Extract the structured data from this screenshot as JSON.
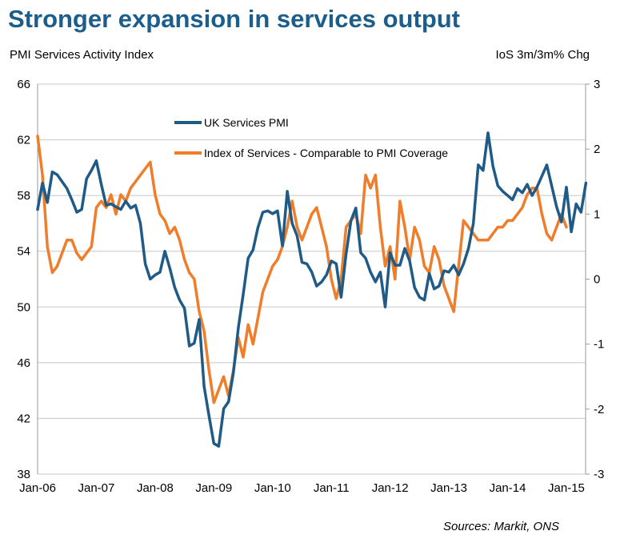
{
  "title": "Stronger expansion in services output",
  "source": "Sources: Markit, ONS",
  "colors": {
    "title": "#1b5e8c",
    "pmi": "#1f5b86",
    "ios": "#f07d2a",
    "grid": "#c8c8c8"
  },
  "chart_data": {
    "type": "line",
    "grid": "horizontal",
    "legend_position": "top-center",
    "ylabel_left": "PMI Services Activity Index",
    "ylabel_right": "IoS 3m/3m% Chg",
    "ylim_left": [
      38,
      66
    ],
    "ylim_right": [
      -3,
      3
    ],
    "left_ticks": [
      "38",
      "42",
      "46",
      "50",
      "54",
      "58",
      "62",
      "66"
    ],
    "right_ticks": [
      "-3",
      "-2",
      "-1",
      "0",
      "1",
      "2",
      "3"
    ],
    "x_ticks": [
      "Jan-06",
      "Jan-07",
      "Jan-08",
      "Jan-09",
      "Jan-10",
      "Jan-11",
      "Jan-12",
      "Jan-13",
      "Jan-14",
      "Jan-15"
    ],
    "x_start": "Jan-06",
    "series": [
      {
        "name": "UK Services PMI",
        "axis": "left",
        "values": [
          57.0,
          58.9,
          57.5,
          59.7,
          59.5,
          59.0,
          58.5,
          57.7,
          56.8,
          57.0,
          59.2,
          59.8,
          60.5,
          58.8,
          57.3,
          57.4,
          57.2,
          57.0,
          57.6,
          57.1,
          57.3,
          56.0,
          53.1,
          52.0,
          52.3,
          52.5,
          54.0,
          52.8,
          51.4,
          50.5,
          49.9,
          47.2,
          47.4,
          49.1,
          44.3,
          42.2,
          40.2,
          40.0,
          42.7,
          43.2,
          45.3,
          48.5,
          50.9,
          53.5,
          54.1,
          55.7,
          56.8,
          56.9,
          56.7,
          56.9,
          54.4,
          58.3,
          56.0,
          55.1,
          53.2,
          53.1,
          52.5,
          51.5,
          51.8,
          52.3,
          53.3,
          53.1,
          50.7,
          53.8,
          56.2,
          57.1,
          53.9,
          53.5,
          52.5,
          51.8,
          52.5,
          50.0,
          53.9,
          53.0,
          53.0,
          54.2,
          53.3,
          51.4,
          50.7,
          50.5,
          52.4,
          51.3,
          51.5,
          52.6,
          52.5,
          53.0,
          52.3,
          53.1,
          54.2,
          56.0,
          60.2,
          59.8,
          62.5,
          60.1,
          58.7,
          58.3,
          58.0,
          57.7,
          58.5,
          58.2,
          58.8,
          58.0,
          58.6,
          59.4,
          60.2,
          58.7,
          57.2,
          56.1,
          58.6,
          55.4,
          57.4,
          56.8,
          58.9
        ]
      },
      {
        "name": "Index of Services - Comparable to PMI Coverage",
        "axis": "right",
        "values": [
          2.2,
          1.6,
          0.5,
          0.1,
          0.2,
          0.4,
          0.6,
          0.6,
          0.4,
          0.3,
          0.4,
          0.5,
          1.1,
          1.2,
          1.1,
          1.3,
          1.0,
          1.3,
          1.2,
          1.4,
          1.5,
          1.6,
          1.7,
          1.8,
          1.3,
          1.0,
          0.9,
          0.7,
          0.8,
          0.6,
          0.3,
          0.1,
          0.0,
          -0.5,
          -0.8,
          -1.4,
          -1.9,
          -1.7,
          -1.5,
          -1.8,
          -1.4,
          -0.9,
          -1.2,
          -0.7,
          -1.0,
          -0.6,
          -0.2,
          0.0,
          0.2,
          0.3,
          0.5,
          0.8,
          1.2,
          0.8,
          0.6,
          0.8,
          1.0,
          1.1,
          0.8,
          0.5,
          0.0,
          -0.3,
          0.0,
          0.8,
          0.9,
          1.0,
          0.7,
          1.6,
          1.4,
          1.6,
          0.8,
          0.2,
          0.5,
          0.0,
          1.2,
          0.8,
          0.3,
          0.8,
          0.6,
          0.2,
          0.1,
          0.5,
          0.3,
          -0.1,
          -0.3,
          -0.5,
          0.2,
          0.9,
          0.8,
          0.7,
          0.6,
          0.6,
          0.6,
          0.7,
          0.8,
          0.8,
          0.9,
          0.9,
          1.0,
          1.1,
          1.3,
          1.4,
          1.4,
          1.0,
          0.7,
          0.6,
          0.8,
          1.0,
          0.8
        ]
      }
    ]
  }
}
